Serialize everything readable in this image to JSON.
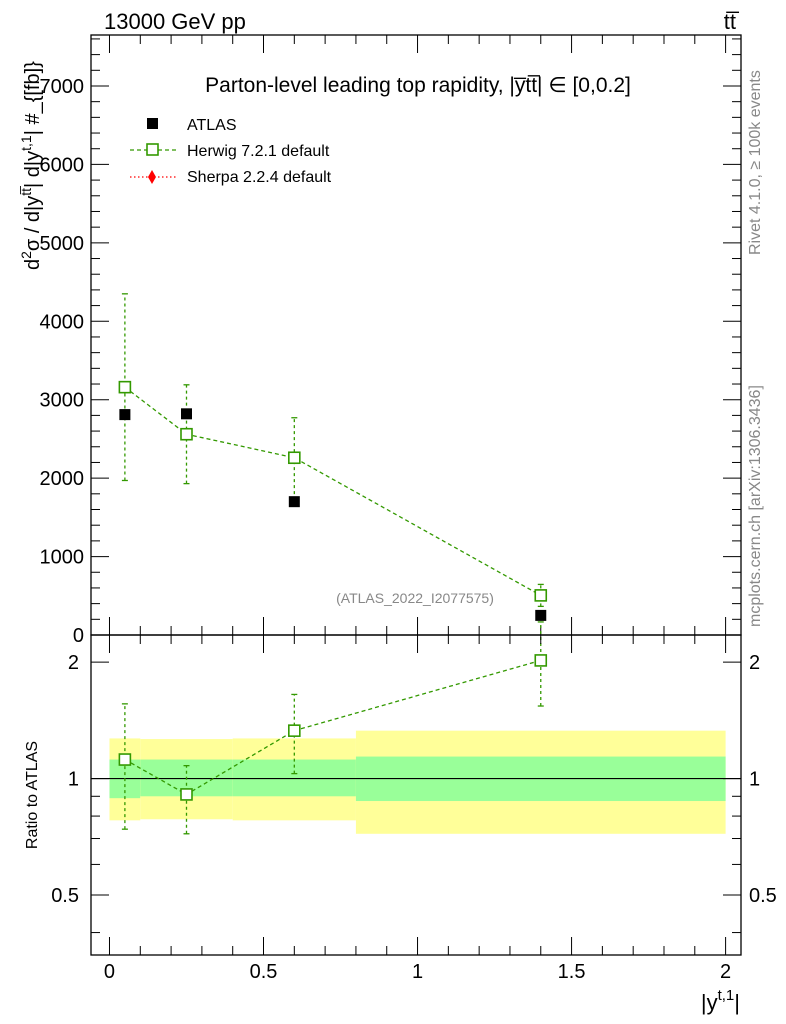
{
  "header": {
    "energy_label": "13000 GeV pp",
    "process_label": "tt̅"
  },
  "side_labels": {
    "rivet": "Rivet 4.1.0, ≥ 100k events",
    "mcplots": "mcplots.cern.ch [arXiv:1306.3436]"
  },
  "colors": {
    "atlas": "#000000",
    "herwig": "#339900",
    "sherpa": "#ff0000",
    "band_inner": "#99ff99",
    "band_outer": "#ffff99"
  },
  "chart_data": [
    {
      "type": "scatter",
      "title": "Parton-level leading top rapidity, |y̅tt̅| ∈ [0,0.2]",
      "ylabel": "d²σ / d|y^{tt̅}| d|y^{t,1}| #_{[fb]}",
      "ylabel_parts": {
        "pre": "d",
        "sup1": "2",
        "mid": "σ / d|y",
        "sup2": "tt̅",
        "mid2": "| d|y",
        "sup3": "t,1",
        "post": "| #_{[fb]}"
      },
      "xlim": [
        -0.06,
        2.05
      ],
      "ylim": [
        0,
        7650
      ],
      "y_ticks": [
        0,
        1000,
        2000,
        3000,
        4000,
        5000,
        6000,
        7000
      ],
      "y_tick_labels": [
        "0",
        "1000",
        "2000",
        "3000",
        "4000",
        "5000",
        "6000",
        "7000"
      ],
      "watermark": "(ATLAS_2022_I2077575)",
      "legend": [
        {
          "name": "ATLAS",
          "marker": "square-filled"
        },
        {
          "name": "Herwig 7.2.1 default",
          "marker": "square-open"
        },
        {
          "name": "Sherpa 2.2.4 default",
          "marker": "diamond"
        }
      ],
      "series": [
        {
          "name": "ATLAS",
          "x": [
            0.05,
            0.25,
            0.6,
            1.4
          ],
          "y": [
            2810,
            2820,
            1700,
            250
          ],
          "xerr": [
            0.05,
            0.15,
            0.2,
            0.6
          ]
        },
        {
          "name": "Herwig 7.2.1 default",
          "x": [
            0.05,
            0.25,
            0.6,
            1.4
          ],
          "y": [
            3160,
            2560,
            2260,
            505
          ],
          "yerr_low": [
            1190,
            630,
            540,
            140
          ],
          "yerr_high": [
            1190,
            630,
            510,
            140
          ]
        },
        {
          "name": "Sherpa 2.2.4 default",
          "x": [],
          "y": []
        }
      ]
    },
    {
      "type": "scatter",
      "ylabel": "Ratio to ATLAS",
      "xlabel": "|y^{t,1}|",
      "xlabel_parts": {
        "pre": "|y",
        "sup": "t,1",
        "post": "|"
      },
      "xlim": [
        -0.06,
        2.05
      ],
      "ylim": [
        0.35,
        2.35
      ],
      "y_ticks": [
        0.5,
        1,
        2
      ],
      "y_tick_labels": [
        "0.5",
        "1",
        "2"
      ],
      "x_ticks": [
        0,
        0.5,
        1,
        1.5,
        2
      ],
      "x_tick_labels": [
        "0",
        "0.5",
        "1",
        "1.5",
        "2"
      ],
      "bands": [
        {
          "x0": 0.0,
          "x1": 0.1,
          "inner": [
            0.89,
            1.12
          ],
          "outer": [
            0.78,
            1.27
          ]
        },
        {
          "x0": 0.1,
          "x1": 0.4,
          "inner": [
            0.9,
            1.12
          ],
          "outer": [
            0.785,
            1.265
          ]
        },
        {
          "x0": 0.4,
          "x1": 0.8,
          "inner": [
            0.9,
            1.12
          ],
          "outer": [
            0.78,
            1.27
          ]
        },
        {
          "x0": 0.8,
          "x1": 2.0,
          "inner": [
            0.875,
            1.14
          ],
          "outer": [
            0.72,
            1.33
          ]
        }
      ],
      "series": [
        {
          "name": "Herwig 7.2.1 default",
          "x": [
            0.05,
            0.25,
            0.6,
            1.4
          ],
          "y": [
            1.12,
            0.91,
            1.33,
            2.02
          ],
          "yerr_low": [
            0.38,
            0.19,
            0.3,
            0.48
          ],
          "yerr_high": [
            0.44,
            0.17,
            0.32,
            0.52
          ]
        }
      ]
    }
  ]
}
